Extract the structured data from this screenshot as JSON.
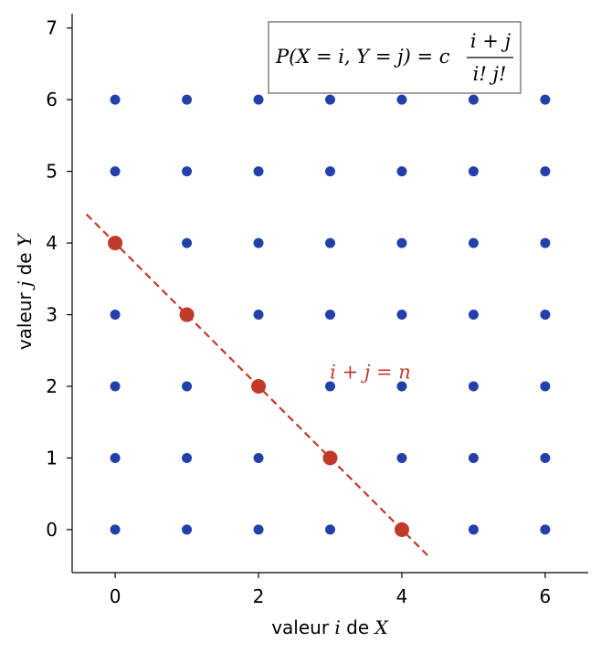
{
  "chart_data": {
    "type": "scatter",
    "xlabel": {
      "prefix": "valeur ",
      "var": "i",
      "suffix": " de ",
      "var2": "X"
    },
    "ylabel": {
      "prefix": "valeur ",
      "var": "j",
      "suffix": " de ",
      "var2": "Y"
    },
    "xlim": [
      -0.6,
      6.6
    ],
    "ylim": [
      -0.6,
      7.2
    ],
    "xticks": [
      0,
      2,
      4,
      6
    ],
    "yticks": [
      0,
      1,
      2,
      3,
      4,
      5,
      6,
      7
    ],
    "grid": false,
    "legend": "none",
    "grid_points": {
      "i_values": [
        0,
        1,
        2,
        3,
        4,
        5,
        6
      ],
      "j_values": [
        0,
        1,
        2,
        3,
        4,
        5,
        6
      ],
      "color": "#2340aa"
    },
    "highlight_points": {
      "points": [
        [
          0,
          4
        ],
        [
          1,
          3
        ],
        [
          2,
          2
        ],
        [
          3,
          1
        ],
        [
          4,
          0
        ]
      ],
      "color": "#c0392b"
    },
    "diagonal_line": {
      "from": [
        -0.4,
        4.4
      ],
      "to": [
        4.4,
        -0.4
      ],
      "style": "dashed",
      "color": "#c0392b"
    },
    "line_annotation": {
      "text": "i + j = n",
      "x": 3.0,
      "y": 2.2
    },
    "formula_box": {
      "lhs": "P(X = i, Y = j) = c",
      "numerator": "i + j",
      "denominator": "i! j!",
      "border_color": "#808080"
    }
  }
}
